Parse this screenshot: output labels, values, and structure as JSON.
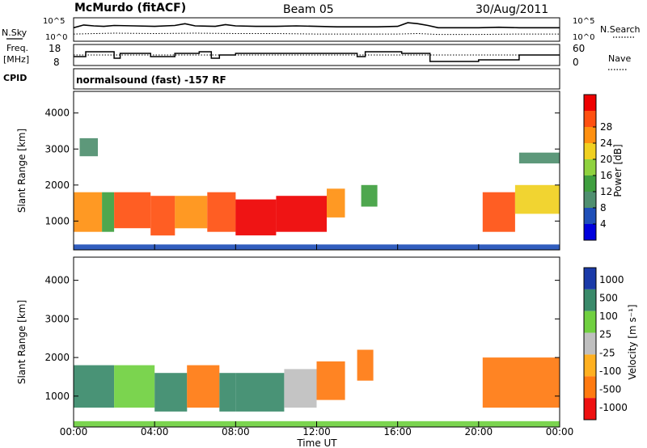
{
  "header": {
    "station": "McMurdo (fitACF)",
    "beam": "Beam 05",
    "date": "30/Aug/2011"
  },
  "side_labels": {
    "nsky": "N.Sky",
    "freq_line1": "Freq.",
    "freq_line2": "[MHz]",
    "cpid": "CPID",
    "nsearch": "N.Search",
    "nave": "Nave"
  },
  "cpid_text": "normalsound (fast) -157 RF",
  "colors": {
    "power_scale": [
      "#0000dd",
      "#1f4fb8",
      "#4f8f6f",
      "#3f9f3f",
      "#8fd23f",
      "#f0d020",
      "#ff9010",
      "#ff5010",
      "#ee0000"
    ],
    "velocity_scale": [
      "#1a3aa8",
      "#3a8a6a",
      "#70d040",
      "#bfbfbf",
      "#ffb020",
      "#ff7a10",
      "#ee1010"
    ]
  },
  "chart_data": [
    {
      "type": "line",
      "panel": "noise",
      "y_left_ticks": [
        "10^5",
        "10^0"
      ],
      "y_right_ticks": [
        "10^5",
        "10^0"
      ],
      "series": [
        {
          "name": "N.Sky",
          "x": [
            0,
            0.5,
            1,
            1.5,
            2,
            3,
            4,
            5,
            5.5,
            6,
            7,
            7.5,
            8,
            9,
            10,
            11,
            12,
            13,
            14,
            15,
            16,
            16.5,
            17,
            17.5,
            18,
            19,
            20,
            21,
            22,
            23,
            24
          ],
          "values": [
            3.0,
            3.6,
            3.4,
            3.3,
            3.5,
            3.4,
            3.3,
            3.5,
            3.9,
            3.4,
            3.3,
            3.7,
            3.4,
            3.3,
            3.3,
            3.4,
            3.3,
            3.2,
            3.2,
            3.2,
            3.3,
            4.1,
            3.9,
            3.5,
            3.0,
            3.0,
            3.0,
            3.1,
            3.0,
            3.0,
            3.0
          ]
        },
        {
          "name": "N.Search",
          "x": [
            0,
            2,
            4,
            6,
            8,
            10,
            12,
            14,
            16,
            17,
            18,
            20,
            22,
            24
          ],
          "values": [
            1.6,
            1.8,
            1.7,
            1.8,
            1.7,
            1.7,
            1.6,
            1.6,
            1.6,
            1.7,
            1.5,
            1.5,
            1.6,
            1.6
          ]
        }
      ]
    },
    {
      "type": "line",
      "panel": "frequency",
      "y_left_ticks": [
        "18",
        "8"
      ],
      "y_right_ticks": [
        "60",
        "0"
      ],
      "series": [
        {
          "name": "Freq.",
          "x": [
            0,
            0.6,
            1.2,
            2.0,
            2.3,
            3.0,
            3.8,
            4.4,
            5.0,
            6.0,
            6.2,
            6.8,
            7.2,
            8.0,
            9.0,
            10.0,
            12.0,
            14.0,
            14.4,
            16.2,
            17.6,
            18.0,
            20.0,
            22.0,
            24.0
          ],
          "values": [
            12,
            15,
            15,
            11,
            14,
            14,
            12,
            12,
            14,
            14,
            15,
            11,
            13,
            14,
            14,
            14,
            14,
            12,
            15,
            14,
            9,
            9,
            10,
            13,
            13
          ]
        },
        {
          "name": "Nave",
          "x": [
            0,
            24
          ],
          "values": [
            30,
            30
          ]
        }
      ]
    },
    {
      "type": "heatmap",
      "panel": "power",
      "ylabel": "Slant Range [km]",
      "y_ticks": [
        "1000",
        "2000",
        "3000",
        "4000"
      ],
      "ylim": [
        200,
        4600
      ],
      "xlim": [
        0,
        24
      ],
      "colorbar_label": "Power [dB]",
      "colorbar_ticks": [
        "4",
        "8",
        "12",
        "16",
        "20",
        "24",
        "28"
      ],
      "colorbar_range": [
        0,
        30
      ],
      "regions": [
        {
          "x0": 0.0,
          "x1": 1.4,
          "y0": 700,
          "y1": 1800,
          "v": 23
        },
        {
          "x0": 1.4,
          "x1": 2.0,
          "y0": 700,
          "y1": 1800,
          "v": 12
        },
        {
          "x0": 2.0,
          "x1": 3.8,
          "y0": 800,
          "y1": 1800,
          "v": 24
        },
        {
          "x0": 3.8,
          "x1": 5.0,
          "y0": 600,
          "y1": 1700,
          "v": 24
        },
        {
          "x0": 5.0,
          "x1": 6.6,
          "y0": 800,
          "y1": 1700,
          "v": 22
        },
        {
          "x0": 6.6,
          "x1": 8.0,
          "y0": 700,
          "y1": 1800,
          "v": 25
        },
        {
          "x0": 8.0,
          "x1": 10.0,
          "y0": 600,
          "y1": 1600,
          "v": 28
        },
        {
          "x0": 10.0,
          "x1": 12.5,
          "y0": 700,
          "y1": 1700,
          "v": 28
        },
        {
          "x0": 12.5,
          "x1": 13.4,
          "y0": 1100,
          "y1": 1900,
          "v": 20
        },
        {
          "x0": 14.2,
          "x1": 15.0,
          "y0": 1400,
          "y1": 2000,
          "v": 10
        },
        {
          "x0": 20.2,
          "x1": 21.8,
          "y0": 700,
          "y1": 1800,
          "v": 24
        },
        {
          "x0": 21.8,
          "x1": 24.0,
          "y0": 1200,
          "y1": 2000,
          "v": 18
        },
        {
          "x0": 0.0,
          "x1": 24.0,
          "y0": 200,
          "y1": 350,
          "v": 6
        },
        {
          "x0": 0.3,
          "x1": 1.2,
          "y0": 2800,
          "y1": 3300,
          "v": 7
        },
        {
          "x0": 22.0,
          "x1": 24.0,
          "y0": 2600,
          "y1": 2900,
          "v": 8
        }
      ]
    },
    {
      "type": "heatmap",
      "panel": "velocity",
      "ylabel": "Slant Range [km]",
      "y_ticks": [
        "1000",
        "2000",
        "3000",
        "4000"
      ],
      "ylim": [
        200,
        4600
      ],
      "xlim": [
        0,
        24
      ],
      "xlabel": "Time UT",
      "x_ticks": [
        "00:00",
        "04:00",
        "08:00",
        "12:00",
        "16:00",
        "20:00",
        "00:00"
      ],
      "colorbar_label": "Velocity [m s⁻¹]",
      "colorbar_ticks": [
        "1000",
        "500",
        "100",
        "25",
        "-25",
        "-100",
        "-500",
        "-1000"
      ],
      "regions": [
        {
          "x0": 0.0,
          "x1": 2.0,
          "y0": 700,
          "y1": 1800,
          "v": "500"
        },
        {
          "x0": 2.0,
          "x1": 4.0,
          "y0": 700,
          "y1": 1800,
          "v": "100"
        },
        {
          "x0": 4.0,
          "x1": 5.6,
          "y0": 600,
          "y1": 1600,
          "v": "500"
        },
        {
          "x0": 5.6,
          "x1": 7.2,
          "y0": 700,
          "y1": 1800,
          "v": "-100"
        },
        {
          "x0": 7.2,
          "x1": 8.0,
          "y0": 600,
          "y1": 1600,
          "v": "500"
        },
        {
          "x0": 8.0,
          "x1": 10.4,
          "y0": 600,
          "y1": 1600,
          "v": "500"
        },
        {
          "x0": 10.4,
          "x1": 12.0,
          "y0": 700,
          "y1": 1700,
          "v": "25"
        },
        {
          "x0": 12.0,
          "x1": 13.4,
          "y0": 900,
          "y1": 1900,
          "v": "-100"
        },
        {
          "x0": 14.0,
          "x1": 14.8,
          "y0": 1400,
          "y1": 2200,
          "v": "-100"
        },
        {
          "x0": 20.2,
          "x1": 24.0,
          "y0": 700,
          "y1": 2000,
          "v": "-100"
        },
        {
          "x0": 0.0,
          "x1": 24.0,
          "y0": 200,
          "y1": 350,
          "v": "100"
        }
      ]
    }
  ]
}
